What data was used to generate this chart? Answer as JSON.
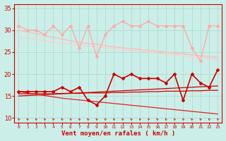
{
  "x": [
    0,
    1,
    2,
    3,
    4,
    5,
    6,
    7,
    8,
    9,
    10,
    11,
    12,
    13,
    14,
    15,
    16,
    17,
    18,
    19,
    20,
    21,
    22,
    23
  ],
  "background_color": "#cceee8",
  "grid_color": "#aaddcc",
  "xlabel": "Vent moyen/en rafales ( km/h )",
  "xlabel_color": "#cc0000",
  "tick_color": "#cc0000",
  "ylim": [
    9,
    36
  ],
  "yticks": [
    10,
    15,
    20,
    25,
    30,
    35
  ],
  "lines": [
    {
      "y": [
        31,
        30,
        30,
        29,
        31,
        29,
        31,
        26,
        31,
        24,
        29,
        31,
        32,
        31,
        31,
        32,
        31,
        31,
        31,
        31,
        26,
        23,
        31,
        31
      ],
      "color": "#ffaaaa",
      "lw": 1.0,
      "marker": "D",
      "ms": 2.0
    },
    {
      "y": [
        30,
        29.6,
        29.2,
        28.8,
        28.4,
        28.0,
        27.6,
        27.2,
        27.0,
        26.8,
        26.5,
        26.2,
        26.0,
        25.8,
        25.6,
        25.4,
        25.2,
        25.0,
        24.8,
        24.6,
        24.4,
        24.2,
        24.0,
        23.8
      ],
      "color": "#ffbbbb",
      "lw": 1.0,
      "marker": null,
      "ms": 0
    },
    {
      "y": [
        28.5,
        28.2,
        27.9,
        27.6,
        27.3,
        27.0,
        26.8,
        26.6,
        26.4,
        26.2,
        26.0,
        25.8,
        25.6,
        25.4,
        25.2,
        25.0,
        24.8,
        24.6,
        24.4,
        24.2,
        24.0,
        23.8,
        23.6,
        23.4
      ],
      "color": "#ffcccc",
      "lw": 0.9,
      "marker": null,
      "ms": 0
    },
    {
      "y": [
        16,
        16,
        16,
        16,
        16,
        17,
        16,
        17,
        14,
        13,
        15,
        20,
        19,
        20,
        19,
        19,
        19,
        18,
        20,
        14,
        20,
        18,
        17,
        21
      ],
      "color": "#cc0000",
      "lw": 1.2,
      "marker": "D",
      "ms": 2.0
    },
    {
      "y": [
        15.5,
        15.5,
        15.5,
        15.5,
        15.5,
        15.6,
        15.6,
        15.6,
        15.7,
        15.7,
        15.7,
        15.8,
        15.8,
        15.9,
        15.9,
        16.0,
        16.0,
        16.1,
        16.1,
        16.1,
        16.2,
        16.2,
        16.3,
        16.3
      ],
      "color": "#cc0000",
      "lw": 0.9,
      "marker": null,
      "ms": 0
    },
    {
      "y": [
        15.0,
        15.1,
        15.2,
        15.3,
        15.4,
        15.5,
        15.6,
        15.7,
        15.8,
        15.9,
        16.0,
        16.1,
        16.2,
        16.3,
        16.4,
        16.5,
        16.6,
        16.7,
        16.8,
        16.9,
        17.0,
        17.1,
        17.2,
        17.3
      ],
      "color": "#cc0000",
      "lw": 0.9,
      "marker": null,
      "ms": 0
    },
    {
      "y": [
        16,
        15.7,
        15.4,
        15.1,
        14.8,
        14.5,
        14.3,
        14.1,
        13.9,
        13.7,
        13.5,
        13.3,
        13.1,
        12.9,
        12.7,
        12.5,
        12.3,
        12.1,
        11.9,
        11.7,
        11.5,
        11.3,
        11.1,
        10.9
      ],
      "color": "#dd2222",
      "lw": 0.9,
      "marker": null,
      "ms": 0
    }
  ]
}
